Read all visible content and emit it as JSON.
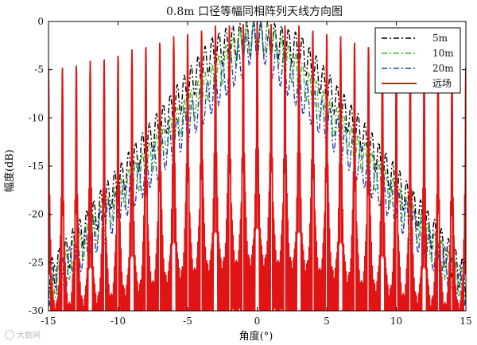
{
  "chart_data": {
    "type": "line",
    "title": "0.8m 口径等幅同相阵列天线方向图",
    "xlabel": "角度(°)",
    "ylabel": "幅度(dB)",
    "xlim": [
      -15,
      15
    ],
    "ylim": [
      -30,
      0
    ],
    "xticks": [
      -15,
      -10,
      -5,
      0,
      5,
      10,
      15
    ],
    "yticks": [
      0,
      -5,
      -10,
      -15,
      -20,
      -25,
      -30
    ],
    "grid": false,
    "legend_position": "top-right",
    "series": [
      {
        "name": "5m",
        "color": "#000000",
        "style": "dashdot",
        "half_width": 3.2,
        "floor": -30,
        "env_edge": -29,
        "ripple": 3.5,
        "period": 0.5
      },
      {
        "name": "10m",
        "color": "#3cb428",
        "style": "dashdot",
        "half_width": 1.7,
        "floor": -30,
        "env_edge": -30,
        "ripple": 3.5,
        "period": 0.5
      },
      {
        "name": "20m",
        "color": "#1f3fa8",
        "style": "dashdot",
        "half_width": 0.9,
        "floor": -30,
        "env_edge": -30,
        "ripple": 4.0,
        "period": 0.55
      },
      {
        "name": "远场",
        "color": "#e01414",
        "style": "solid",
        "half_width": 0.55,
        "floor": -30,
        "env_edge": -30,
        "ripple": 30,
        "period": 0.5
      }
    ]
  },
  "watermark": {
    "text": "大数网"
  }
}
